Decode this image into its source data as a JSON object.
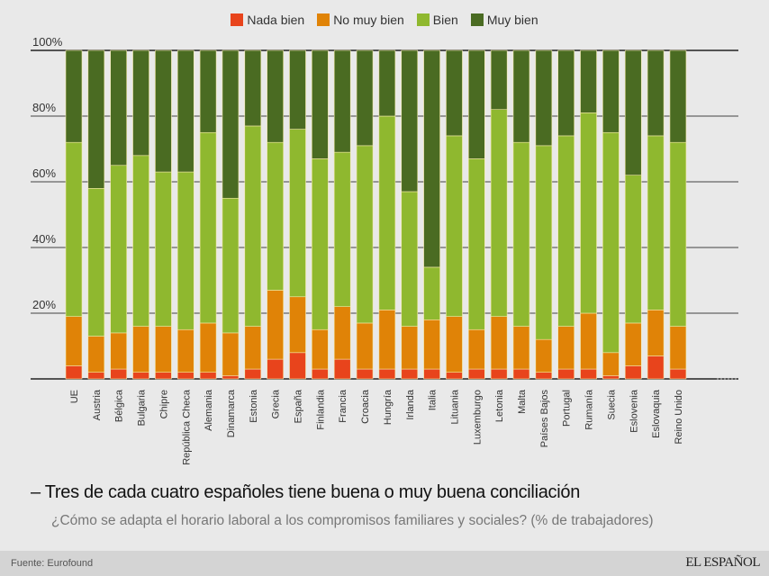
{
  "chart_data": {
    "type": "bar",
    "stacked": true,
    "title": "Tres de cada cuatro españoles tiene buena o muy buena conciliación",
    "subtitle": "¿Cómo se adapta el horario laboral a los compromisos familiares y sociales? (% de trabajadores)",
    "xlabel": "",
    "ylabel": "",
    "ylim": [
      0,
      100
    ],
    "yticks": [
      0,
      20,
      40,
      60,
      80,
      100
    ],
    "ytick_labels": [
      "",
      "20%",
      "40%",
      "60%",
      "80%",
      "100%"
    ],
    "grid": true,
    "legend_position": "top-center",
    "categories": [
      "UE",
      "Austria",
      "Bélgica",
      "Bulgaria",
      "Chipre",
      "República Checa",
      "Alemania",
      "Dinamarca",
      "Estonia",
      "Grecia",
      "España",
      "Finlandia",
      "Francia",
      "Croacia",
      "Hungría",
      "Irlanda",
      "Italia",
      "Lituania",
      "Luxemburgo",
      "Letonia",
      "Malta",
      "Países Bajos",
      "Portugal",
      "Rumanía",
      "Suecia",
      "Eslovenia",
      "Eslovaquia",
      "Reino Unido"
    ],
    "series": [
      {
        "name": "Nada bien",
        "color": "#e8441c",
        "values": [
          4,
          2,
          3,
          2,
          2,
          2,
          2,
          1,
          3,
          6,
          8,
          3,
          6,
          3,
          3,
          3,
          3,
          2,
          3,
          3,
          3,
          2,
          3,
          3,
          1,
          4,
          7,
          3
        ]
      },
      {
        "name": "No muy bien",
        "color": "#e08307",
        "values": [
          15,
          11,
          11,
          14,
          14,
          13,
          15,
          13,
          13,
          21,
          17,
          12,
          16,
          14,
          18,
          13,
          15,
          17,
          12,
          16,
          13,
          10,
          13,
          17,
          7,
          13,
          14,
          13
        ]
      },
      {
        "name": "Bien",
        "color": "#8fb82f",
        "values": [
          53,
          45,
          51,
          52,
          47,
          48,
          58,
          41,
          61,
          45,
          51,
          52,
          47,
          54,
          59,
          41,
          16,
          55,
          52,
          63,
          56,
          59,
          58,
          61,
          67,
          45,
          53,
          56
        ]
      },
      {
        "name": "Muy bien",
        "color": "#4a6b22",
        "values": [
          28,
          42,
          35,
          32,
          37,
          37,
          25,
          45,
          23,
          28,
          24,
          33,
          31,
          29,
          20,
          43,
          66,
          26,
          33,
          18,
          28,
          29,
          26,
          19,
          25,
          38,
          26,
          28
        ]
      }
    ]
  },
  "footer": {
    "source": "Fuente: Eurofound",
    "brand": "EL ESPAÑOL"
  }
}
